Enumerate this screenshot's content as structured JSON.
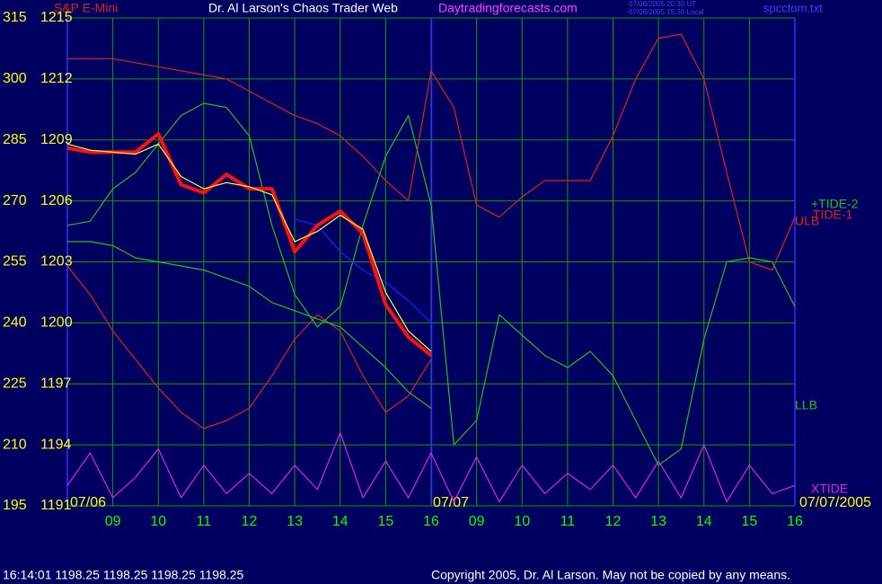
{
  "chart_data": {
    "type": "line",
    "title": "Dr. Al Larson's Chaos Trader Web",
    "instrument": "S&P E-Mini",
    "website": "Daytradingforecasts.com",
    "timestamps": [
      "07/06/2005 20:30 UT",
      "07/06/2005 15:30 Local"
    ],
    "file": "spcctom.txt",
    "date_labels": [
      "07/06",
      "07/07",
      "07/07/2005"
    ],
    "footer_quote": "16:14:01  1198.25 1198.25 1198.25 1198.25",
    "copyright": "Copyright 2005, Dr. Al Larson. May not be copied by any means.",
    "x": [
      0,
      0.5,
      1,
      1.5,
      2,
      2.5,
      3,
      3.5,
      4,
      4.5,
      5,
      5.5,
      6,
      6.5,
      7,
      7.5,
      8,
      8.5,
      9,
      9.5,
      10,
      10.5,
      11,
      11.5,
      12,
      12.5,
      13,
      13.5,
      14,
      14.5,
      15,
      15.5,
      16
    ],
    "xlim": [
      0,
      16
    ],
    "xticks": [
      {
        "value": 1,
        "label": "09"
      },
      {
        "value": 2,
        "label": "10"
      },
      {
        "value": 3,
        "label": "11"
      },
      {
        "value": 4,
        "label": "12"
      },
      {
        "value": 5,
        "label": "13"
      },
      {
        "value": 6,
        "label": "14"
      },
      {
        "value": 7,
        "label": "15"
      },
      {
        "value": 8,
        "label": "16"
      },
      {
        "value": 9,
        "label": "09"
      },
      {
        "value": 10,
        "label": "10"
      },
      {
        "value": 11,
        "label": "11"
      },
      {
        "value": 12,
        "label": "12"
      },
      {
        "value": 13,
        "label": "13"
      },
      {
        "value": 14,
        "label": "14"
      },
      {
        "value": 15,
        "label": "15"
      },
      {
        "value": 16,
        "label": "16"
      }
    ],
    "ylim": [
      195,
      315
    ],
    "yticks": [
      315,
      300,
      285,
      270,
      255,
      240,
      225,
      210,
      195
    ],
    "y2lim": [
      1191,
      1215
    ],
    "y2ticks": [
      1215,
      1212,
      1209,
      1206,
      1203,
      1200,
      1197,
      1194,
      1191
    ],
    "grid": true,
    "series": [
      {
        "name": "ULB",
        "color": "#e02020",
        "values": [
          305,
          305,
          305,
          304,
          303,
          302,
          301,
          300,
          297,
          294,
          291,
          289,
          286,
          281,
          275,
          270,
          302,
          293,
          269,
          266,
          271,
          275,
          275,
          275,
          286,
          300,
          310,
          311,
          300,
          277,
          255,
          253,
          266
        ]
      },
      {
        "name": "TIDE-1",
        "color": "#e02020",
        "values": [
          254,
          247,
          238,
          231,
          224,
          218,
          214,
          216,
          219,
          227,
          236,
          242,
          238,
          227,
          218,
          222,
          231,
          null,
          null,
          null,
          null,
          null,
          null,
          null,
          null,
          null,
          null,
          null,
          null,
          null,
          null,
          null,
          null
        ]
      },
      {
        "name": "+TIDE-2",
        "color": "#20c020",
        "values": [
          264,
          265,
          273,
          277,
          284,
          291,
          294,
          293,
          286,
          264,
          247,
          239,
          244,
          264,
          281,
          291,
          269,
          210,
          216,
          242,
          237,
          232,
          229,
          233,
          227,
          216,
          205,
          209,
          236,
          255,
          256,
          255,
          244
        ]
      },
      {
        "name": "LLB",
        "color": "#20c020",
        "values": [
          260,
          260,
          259,
          256,
          255,
          254,
          253,
          251,
          249,
          245,
          243,
          241,
          239,
          234,
          229,
          223,
          219,
          null,
          null,
          null,
          null,
          null,
          null,
          null,
          null,
          null,
          null,
          null,
          null,
          null,
          null,
          null,
          null
        ]
      },
      {
        "name": "XTIDE",
        "color": "#e020e0",
        "values": [
          200,
          208,
          197,
          202,
          209,
          197,
          205,
          198,
          203,
          198,
          205,
          199,
          213,
          197,
          206,
          197,
          208,
          196,
          207,
          196,
          205,
          198,
          203,
          199,
          205,
          197,
          206,
          197,
          210,
          196,
          205,
          198,
          200
        ]
      },
      {
        "color": "#2020ff",
        "axis": "y2",
        "values": [
          null,
          null,
          null,
          null,
          null,
          null,
          null,
          null,
          null,
          null,
          1205.1,
          1204.8,
          1203.5,
          1202.6,
          1202.0,
          1201.1,
          1200.0,
          null,
          null,
          null,
          null,
          null,
          null,
          null,
          null,
          null,
          null,
          null,
          null,
          null,
          null,
          null,
          null
        ]
      },
      {
        "color": "#ff1010",
        "axis": "y2",
        "values": [
          1208.6,
          1208.4,
          1208.4,
          1208.4,
          1209.3,
          1206.8,
          1206.4,
          1207.3,
          1206.6,
          1206.6,
          1203.5,
          1204.8,
          1205.5,
          1204.4,
          1200.9,
          1199.3,
          1198.4,
          null,
          null,
          null,
          null,
          null,
          null,
          null,
          null,
          null,
          null,
          null,
          null,
          null,
          null,
          null,
          null
        ]
      },
      {
        "color": "#ffff40",
        "axis": "y2",
        "values": [
          1208.8,
          1208.5,
          1208.4,
          1208.3,
          1208.8,
          1207.2,
          1206.6,
          1206.9,
          1206.7,
          1206.3,
          1204.0,
          1204.5,
          1205.3,
          1204.6,
          1201.5,
          1199.6,
          1198.6,
          null,
          null,
          null,
          null,
          null,
          null,
          null,
          null,
          null,
          null,
          null,
          null,
          null,
          null,
          null,
          null
        ]
      }
    ]
  }
}
